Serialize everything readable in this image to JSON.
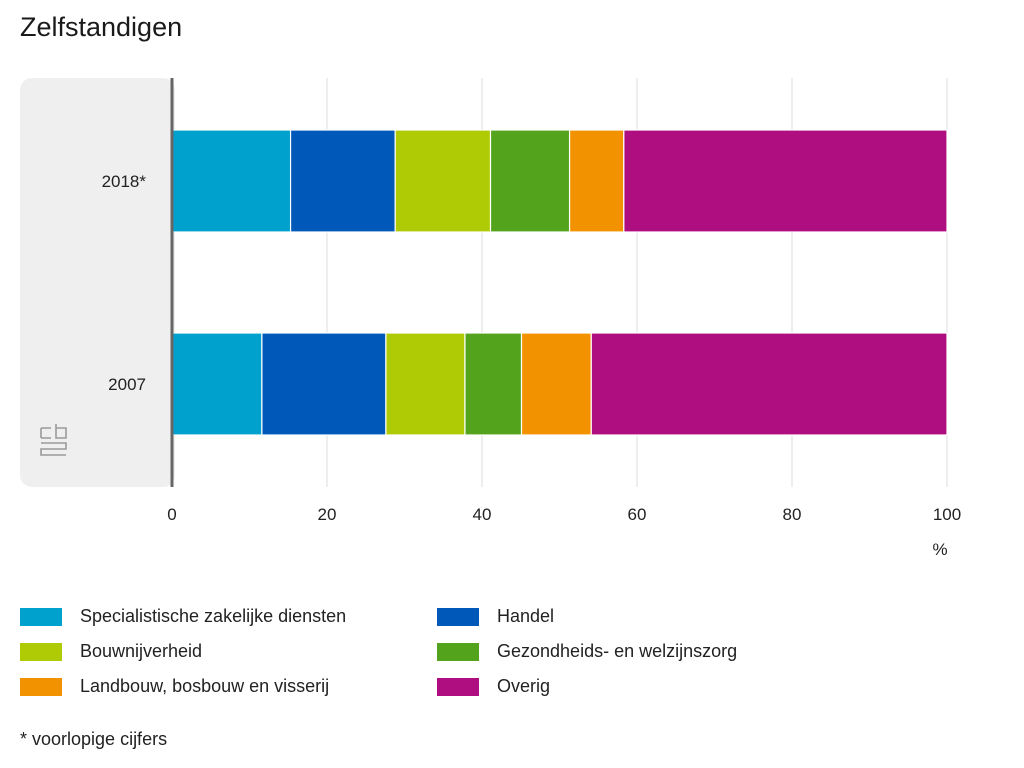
{
  "chart_data": {
    "type": "bar",
    "orientation": "horizontal",
    "stacked": true,
    "title": "Zelfstandigen",
    "categories": [
      "2018*",
      "2007"
    ],
    "series": [
      {
        "name": "Specialistische zakelijke diensten",
        "color": "#00a1cd",
        "values": [
          15.3,
          11.6
        ]
      },
      {
        "name": "Handel",
        "color": "#0058b8",
        "values": [
          13.5,
          16.0
        ]
      },
      {
        "name": "Bouwnijverheid",
        "color": "#afcb05",
        "values": [
          12.3,
          10.2
        ]
      },
      {
        "name": "Gezondheids- en welzijnszorg",
        "color": "#53a31d",
        "values": [
          10.2,
          7.3
        ]
      },
      {
        "name": "Landbouw, bosbouw en visserij",
        "color": "#f39200",
        "values": [
          7.0,
          9.0
        ]
      },
      {
        "name": "Overig",
        "color": "#af0e80",
        "values": [
          41.7,
          45.9
        ]
      }
    ],
    "xlim": [
      0,
      100
    ],
    "xticks": [
      0,
      20,
      40,
      60,
      80,
      100
    ],
    "xunit": "%",
    "grid": true,
    "legend_position": "bottom"
  },
  "footnote": "* voorlopige cijfers",
  "logo": "cbs"
}
